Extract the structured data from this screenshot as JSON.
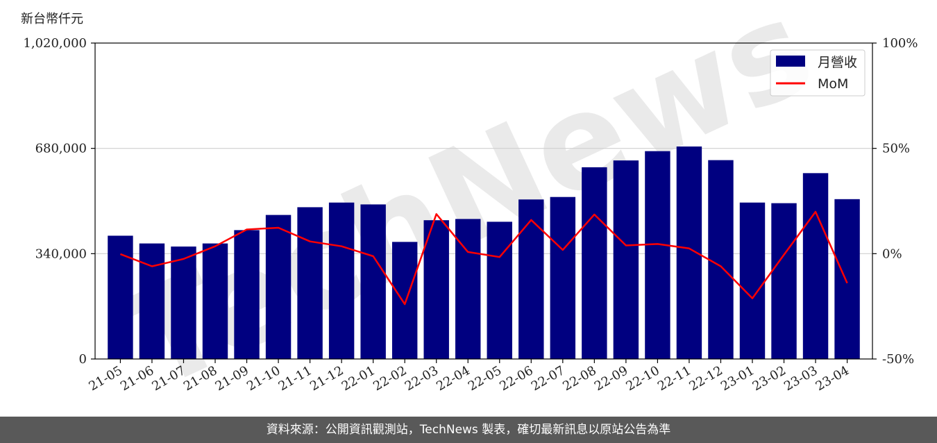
{
  "chart_data": {
    "type": "bar",
    "y_unit": "新台幣仟元",
    "categories": [
      "21-05",
      "21-06",
      "21-07",
      "21-08",
      "21-09",
      "21-10",
      "21-11",
      "21-12",
      "22-01",
      "22-02",
      "22-03",
      "22-04",
      "22-05",
      "22-06",
      "22-07",
      "22-08",
      "22-09",
      "22-10",
      "22-11",
      "22-12",
      "23-01",
      "23-02",
      "23-03",
      "23-04"
    ],
    "series": [
      {
        "name": "月營收",
        "type": "bar",
        "color": "#000080",
        "values": [
          398000,
          373000,
          363000,
          373000,
          416000,
          465000,
          490000,
          505000,
          499000,
          378000,
          448000,
          452000,
          443000,
          515000,
          523000,
          619000,
          641000,
          671000,
          686000,
          642000,
          505000,
          503000,
          600000,
          516000
        ]
      },
      {
        "name": "MoM",
        "type": "line",
        "color": "#ff0000",
        "values": [
          -0.2,
          -6.0,
          -2.5,
          3.5,
          11.5,
          12.3,
          5.8,
          3.5,
          -1.2,
          -24.0,
          18.8,
          0.8,
          -1.6,
          16.0,
          1.8,
          18.6,
          3.9,
          4.6,
          2.5,
          -6.0,
          -21.2,
          -0.5,
          19.9,
          -14.0
        ]
      }
    ],
    "y_left": {
      "ylim": [
        0,
        1020000
      ],
      "ticks": [
        "0",
        "340,000",
        "680,000",
        "1,020,000"
      ],
      "tick_values": [
        0,
        340000,
        680000,
        1020000
      ]
    },
    "y_right": {
      "ylim": [
        -50,
        100
      ],
      "ticks": [
        "-50%",
        "0%",
        "50%",
        "100%"
      ],
      "tick_values": [
        -50,
        0,
        50,
        100
      ]
    },
    "grid": "horizontal",
    "legend": "top-right"
  },
  "watermark": "TechNews",
  "footer": "資料來源：公開資訊觀測站，TechNews 製表，確切最新訊息以原站公告為準"
}
